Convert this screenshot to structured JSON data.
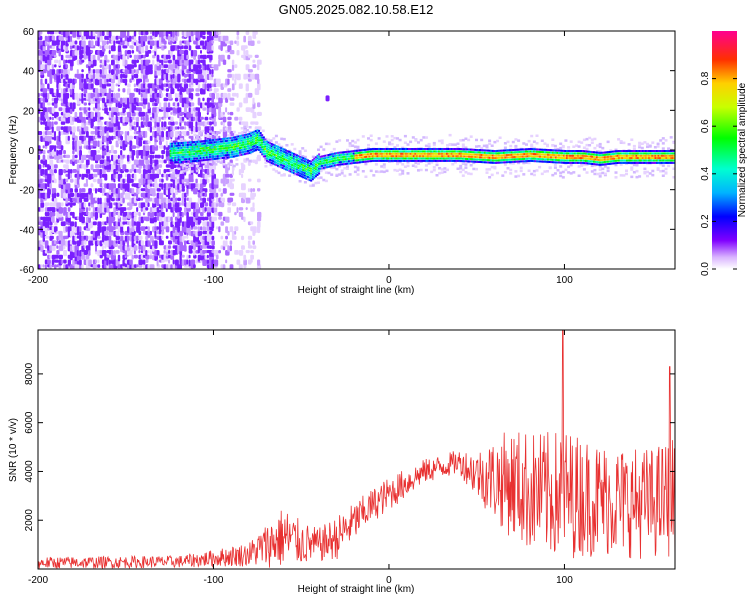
{
  "title": "GN05.2025.082.10.58.E12",
  "chart_data": [
    {
      "type": "heatmap",
      "xlabel": "Height of straight line (km)",
      "ylabel": "Frequency (Hz)",
      "xlim": [
        -200,
        163
      ],
      "ylim": [
        -60,
        60
      ],
      "xticks": [
        -200,
        -100,
        0,
        100
      ],
      "yticks": [
        -60,
        -40,
        -20,
        0,
        20,
        40,
        60
      ],
      "colorbar": {
        "label": "Normalized spectral amplitude",
        "ticks": [
          0.0,
          0.2,
          0.4,
          0.6,
          0.8
        ],
        "range": [
          0,
          1
        ]
      },
      "ridge": {
        "x": [
          -125,
          -110,
          -100,
          -90,
          -80,
          -75,
          -70,
          -60,
          -50,
          -45,
          -40,
          -30,
          -20,
          -10,
          0,
          20,
          40,
          60,
          80,
          100,
          110,
          120,
          130,
          140,
          150,
          163
        ],
        "y": [
          -1,
          0,
          1,
          2,
          4,
          6,
          0,
          -4,
          -8,
          -10,
          -6,
          -4,
          -3,
          -2,
          -2,
          -2,
          -2,
          -3,
          -2,
          -3,
          -3,
          -4,
          -3,
          -3,
          -3,
          -3
        ]
      },
      "blob": {
        "x": -35,
        "y": 26
      }
    },
    {
      "type": "line",
      "xlabel": "Height of straight line (km)",
      "ylabel": "SNR (10 * v/v)",
      "xlim": [
        -200,
        163
      ],
      "ylim": [
        0,
        9800
      ],
      "xticks": [
        -200,
        -100,
        0,
        100
      ],
      "yticks": [
        2000,
        4000,
        6000,
        8000
      ],
      "color": "#e83030",
      "envelope": {
        "x": [
          -200,
          -120,
          -100,
          -80,
          -70,
          -60,
          -50,
          -40,
          -30,
          -20,
          -10,
          0,
          10,
          20,
          30,
          40,
          50,
          60,
          70,
          80,
          90,
          100,
          110,
          120,
          130,
          140,
          150,
          163
        ],
        "base": [
          150,
          200,
          300,
          400,
          600,
          800,
          700,
          700,
          900,
          1600,
          2300,
          2800,
          3300,
          3800,
          4000,
          4200,
          3500,
          3000,
          2600,
          2200,
          2000,
          2000,
          2000,
          1900,
          1900,
          1800,
          1800,
          2000
        ],
        "amp": [
          250,
          250,
          350,
          500,
          900,
          1300,
          900,
          700,
          900,
          800,
          700,
          700,
          600,
          500,
          500,
          500,
          1000,
          1700,
          2300,
          2500,
          2600,
          2700,
          2500,
          2400,
          2300,
          2300,
          2300,
          2500
        ]
      },
      "spikes": [
        {
          "x": 99,
          "y": 9800
        },
        {
          "x": 160,
          "y": 8300
        }
      ]
    }
  ]
}
